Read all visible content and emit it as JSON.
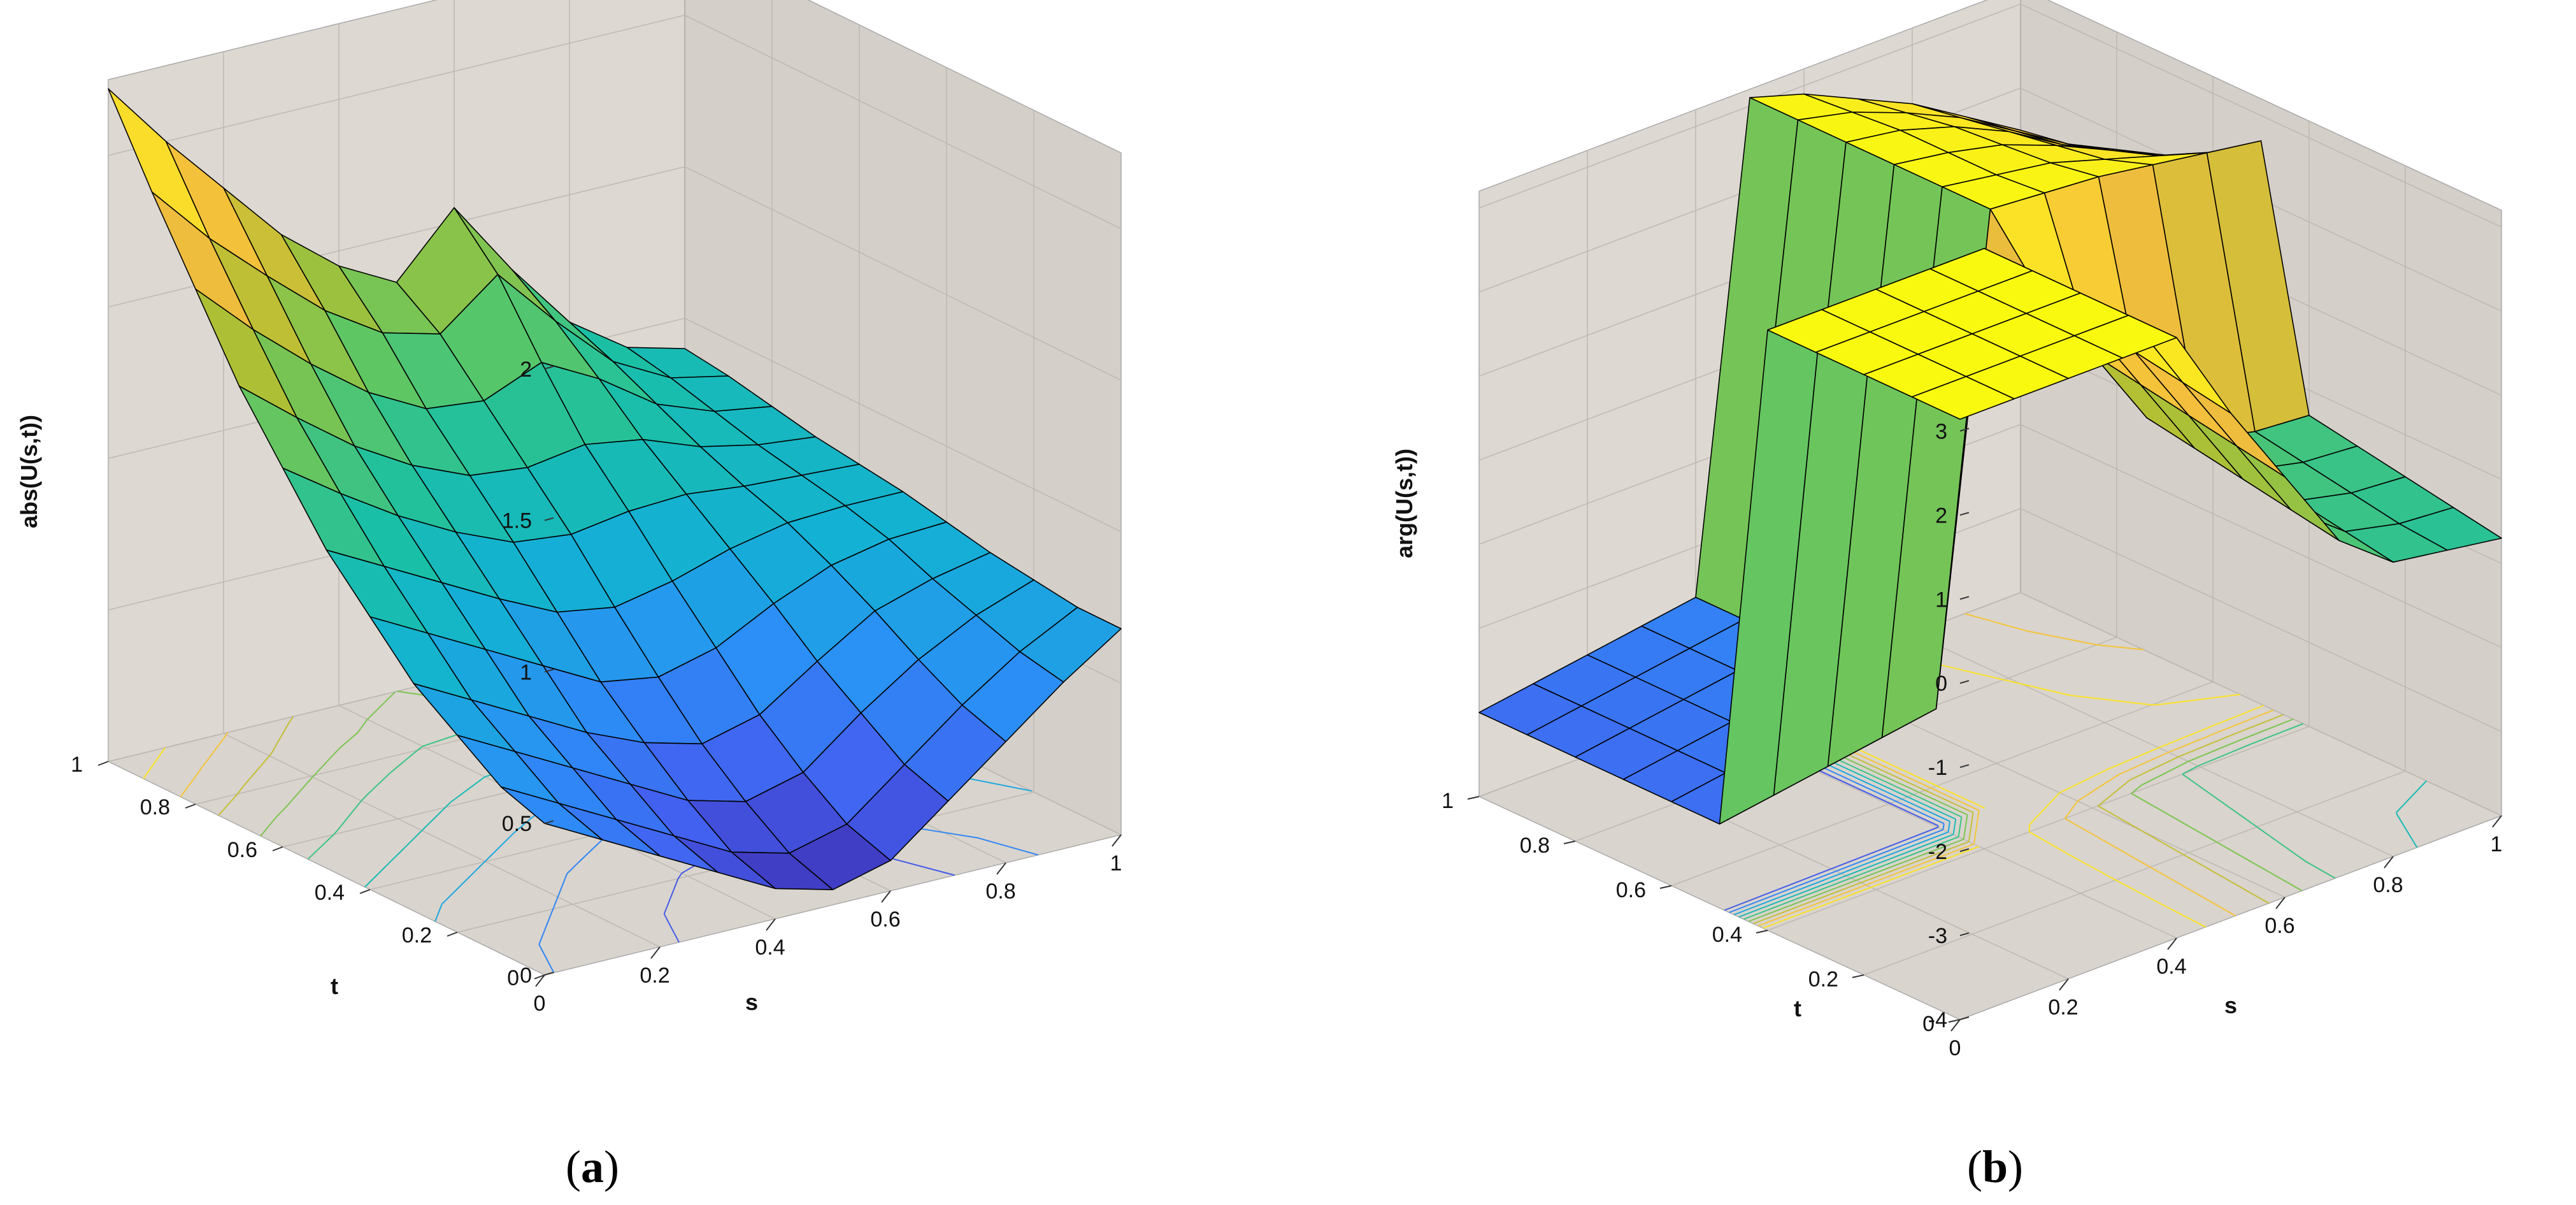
{
  "chart_data": [
    {
      "type": "surface3d",
      "panel_caption": "a",
      "zlabel": "abs(U(s,t))",
      "xlabel": "s",
      "ylabel": "t",
      "x_ticks": [
        "0",
        "0.2",
        "0.4",
        "0.6",
        "0.8",
        "1"
      ],
      "y_ticks": [
        "0",
        "0.2",
        "0.4",
        "0.6",
        "0.8",
        "1"
      ],
      "z_ticks": [
        "0",
        "0.5",
        "1",
        "1.5",
        "2"
      ],
      "xlim": [
        0,
        1
      ],
      "ylim": [
        0,
        1
      ],
      "zlim": [
        0,
        2.25
      ],
      "grid": true,
      "colormap": "parula",
      "contours_on_floor": true,
      "s_values": [
        0,
        0.1,
        0.2,
        0.3,
        0.4,
        0.5,
        0.6,
        0.7,
        0.8,
        0.9,
        1.0
      ],
      "t_values": [
        0,
        0.1,
        0.2,
        0.3,
        0.4,
        0.5,
        0.6,
        0.7,
        0.8,
        0.9,
        1.0
      ],
      "z_rows_by_t": [
        [
          0.5,
          0.4,
          0.3,
          0.2,
          0.1,
          0.05,
          0.1,
          0.25,
          0.4,
          0.55,
          0.68
        ],
        [
          0.55,
          0.45,
          0.35,
          0.25,
          0.15,
          0.1,
          0.15,
          0.3,
          0.45,
          0.58,
          0.68
        ],
        [
          0.65,
          0.55,
          0.45,
          0.35,
          0.25,
          0.2,
          0.25,
          0.4,
          0.53,
          0.63,
          0.7
        ],
        [
          0.75,
          0.65,
          0.55,
          0.45,
          0.37,
          0.32,
          0.37,
          0.5,
          0.62,
          0.68,
          0.72
        ],
        [
          0.9,
          0.8,
          0.7,
          0.6,
          0.5,
          0.47,
          0.52,
          0.62,
          0.7,
          0.74,
          0.75
        ],
        [
          1.05,
          0.95,
          0.85,
          0.75,
          0.66,
          0.63,
          0.67,
          0.73,
          0.77,
          0.78,
          0.78
        ],
        [
          1.25,
          1.12,
          1.0,
          0.9,
          0.82,
          0.8,
          0.83,
          0.84,
          0.82,
          0.81,
          0.8
        ],
        [
          1.45,
          1.3,
          1.16,
          1.05,
          0.97,
          0.95,
          0.98,
          0.95,
          0.88,
          0.84,
          0.82
        ],
        [
          1.7,
          1.52,
          1.36,
          1.22,
          1.12,
          1.1,
          1.18,
          1.08,
          0.95,
          0.88,
          0.85
        ],
        [
          1.95,
          1.75,
          1.58,
          1.42,
          1.3,
          1.25,
          1.4,
          1.2,
          1.02,
          0.92,
          0.88
        ],
        [
          2.22,
          2.0,
          1.8,
          1.6,
          1.45,
          1.35,
          1.55,
          1.3,
          1.08,
          0.95,
          0.9
        ]
      ]
    },
    {
      "type": "surface3d",
      "panel_caption": "b",
      "zlabel": "arg(U(s,t))",
      "xlabel": "s",
      "ylabel": "t",
      "x_ticks": [
        "0",
        "0.2",
        "0.4",
        "0.6",
        "0.8",
        "1"
      ],
      "y_ticks": [
        "0",
        "0.2",
        "0.4",
        "0.6",
        "0.8",
        "1"
      ],
      "z_ticks": [
        "-4",
        "-3",
        "-2",
        "-1",
        "0",
        "1",
        "2",
        "3"
      ],
      "xlim": [
        0,
        1
      ],
      "ylim": [
        0,
        1
      ],
      "zlim": [
        -4,
        3.2
      ],
      "grid": true,
      "colormap": "parula",
      "contours_on_floor": true,
      "s_values": [
        0,
        0.1,
        0.2,
        0.3,
        0.4,
        0.5,
        0.6,
        0.7,
        0.8,
        0.9,
        1.0
      ],
      "t_values": [
        0,
        0.1,
        0.2,
        0.3,
        0.4,
        0.5,
        0.6,
        0.7,
        0.8,
        0.9,
        1.0
      ],
      "z_rows_by_t": [
        [
          3.14,
          3.14,
          3.14,
          3.14,
          3.14,
          2.0,
          1.0,
          0.0,
          -0.5,
          -0.6,
          -0.7
        ],
        [
          3.14,
          3.14,
          3.14,
          3.14,
          3.14,
          2.1,
          1.1,
          0.1,
          -0.4,
          -0.55,
          -0.6
        ],
        [
          3.14,
          3.14,
          3.14,
          3.14,
          3.14,
          2.2,
          1.2,
          0.2,
          -0.3,
          -0.45,
          -0.5
        ],
        [
          3.14,
          3.14,
          3.14,
          3.14,
          3.14,
          2.3,
          1.3,
          0.3,
          -0.2,
          -0.35,
          -0.4
        ],
        [
          3.14,
          3.14,
          3.14,
          3.14,
          3.14,
          2.4,
          1.4,
          0.4,
          -0.1,
          -0.25,
          -0.3
        ],
        [
          -3.0,
          -2.9,
          -2.8,
          -2.7,
          -2.6,
          3.1,
          3.05,
          3.0,
          2.9,
          2.8,
          2.7
        ],
        [
          -3.0,
          -2.9,
          -2.8,
          -2.7,
          -2.6,
          3.1,
          3.0,
          2.9,
          2.7,
          2.5,
          2.3
        ],
        [
          -3.0,
          -2.9,
          -2.8,
          -2.7,
          -2.6,
          3.1,
          3.0,
          2.85,
          2.6,
          2.3,
          2.0
        ],
        [
          -3.0,
          -2.9,
          -2.8,
          -2.7,
          -2.6,
          3.1,
          3.0,
          2.8,
          2.5,
          2.1,
          1.8
        ],
        [
          -3.0,
          -2.9,
          -2.8,
          -2.7,
          -2.6,
          3.1,
          2.95,
          2.7,
          2.4,
          2.0,
          1.6
        ],
        [
          -3.0,
          -2.9,
          -2.8,
          -2.7,
          -2.6,
          3.1,
          2.9,
          2.6,
          2.3,
          1.9,
          1.5
        ]
      ]
    }
  ]
}
